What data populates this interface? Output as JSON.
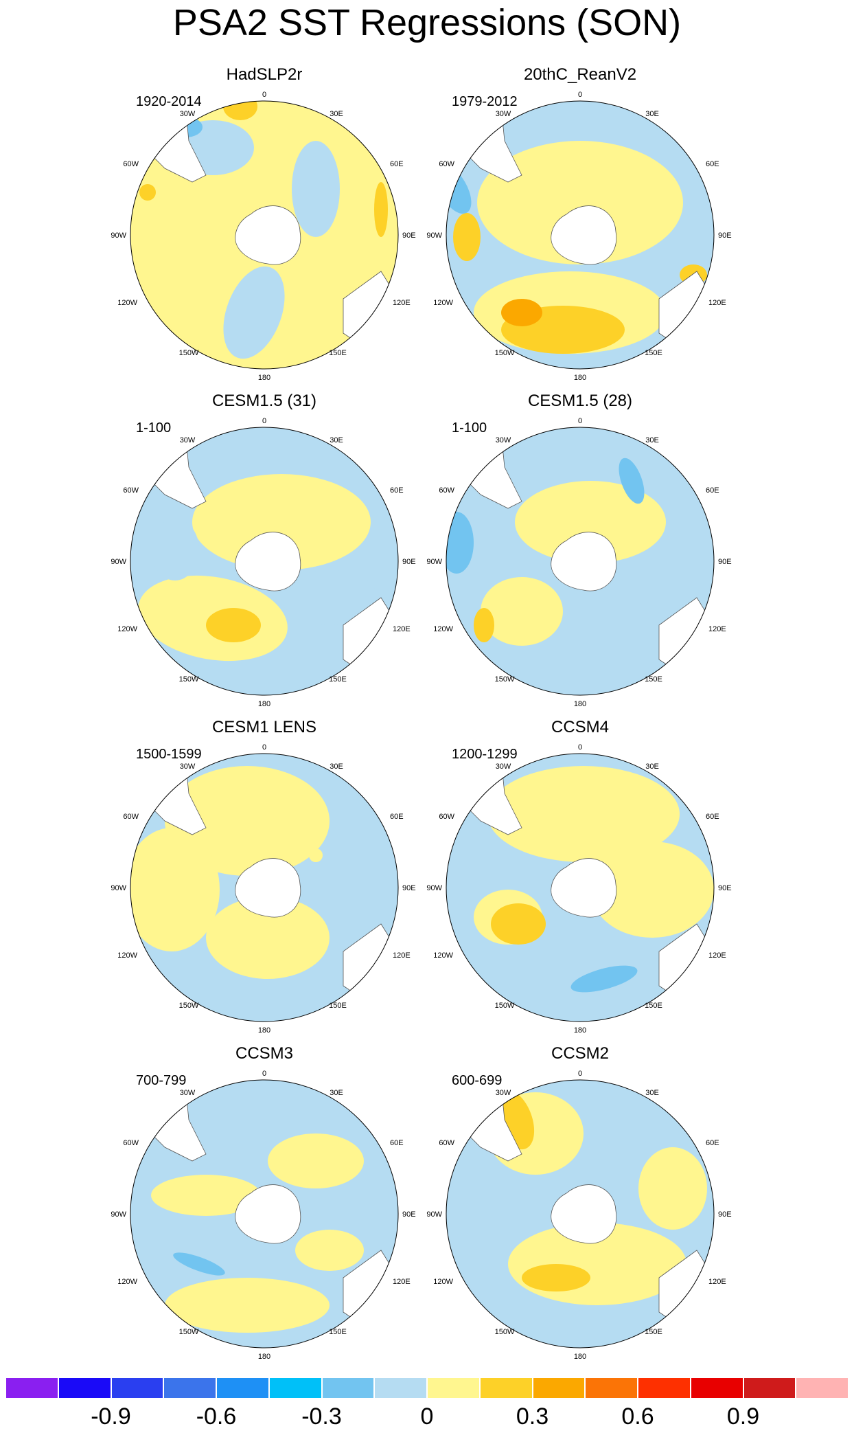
{
  "title": "PSA2 SST Regressions (SON)",
  "lon_labels": {
    "n0": "0",
    "e30": "30E",
    "e60": "60E",
    "e90": "90E",
    "e120": "120E",
    "e150": "150E",
    "s180": "180",
    "w150": "150W",
    "w120": "120W",
    "w90": "90W",
    "w60": "60W",
    "w30": "30W"
  },
  "panels": [
    {
      "title": "HadSLP2r",
      "subtitle": "1920-2014",
      "dominant": "pos"
    },
    {
      "title": "20thC_ReanV2",
      "subtitle": "1979-2012",
      "dominant": "mixed"
    },
    {
      "title": "CESM1.5 (31)",
      "subtitle": "1-100",
      "dominant": "mixed"
    },
    {
      "title": "CESM1.5 (28)",
      "subtitle": "1-100",
      "dominant": "neg"
    },
    {
      "title": "CESM1 LENS",
      "subtitle": "1500-1599",
      "dominant": "mixed"
    },
    {
      "title": "CCSM4",
      "subtitle": "1200-1299",
      "dominant": "mixed"
    },
    {
      "title": "CCSM3",
      "subtitle": "700-799",
      "dominant": "neg"
    },
    {
      "title": "CCSM2",
      "subtitle": "600-699",
      "dominant": "neg"
    }
  ],
  "colorbar": {
    "colors": [
      "#8a1ff0",
      "#1a0af7",
      "#2a3ff0",
      "#3b74eb",
      "#1e90f5",
      "#00c0f8",
      "#72c4f0",
      "#b5dcf2",
      "#fff68f",
      "#fdd128",
      "#fba800",
      "#fb7406",
      "#fe3000",
      "#e80000",
      "#cf1b1b",
      "#ffb3b3"
    ],
    "labels": [
      "-0.9",
      "-0.6",
      "-0.3",
      "0",
      "0.3",
      "0.6",
      "0.9"
    ]
  },
  "colors": {
    "pos_light": "#fff68f",
    "pos_mid": "#fdd128",
    "pos_strong": "#fba800",
    "neg_light": "#b5dcf2",
    "neg_mid": "#72c4f0",
    "neg_strong": "#3b9ff0",
    "land": "#ffffff"
  }
}
